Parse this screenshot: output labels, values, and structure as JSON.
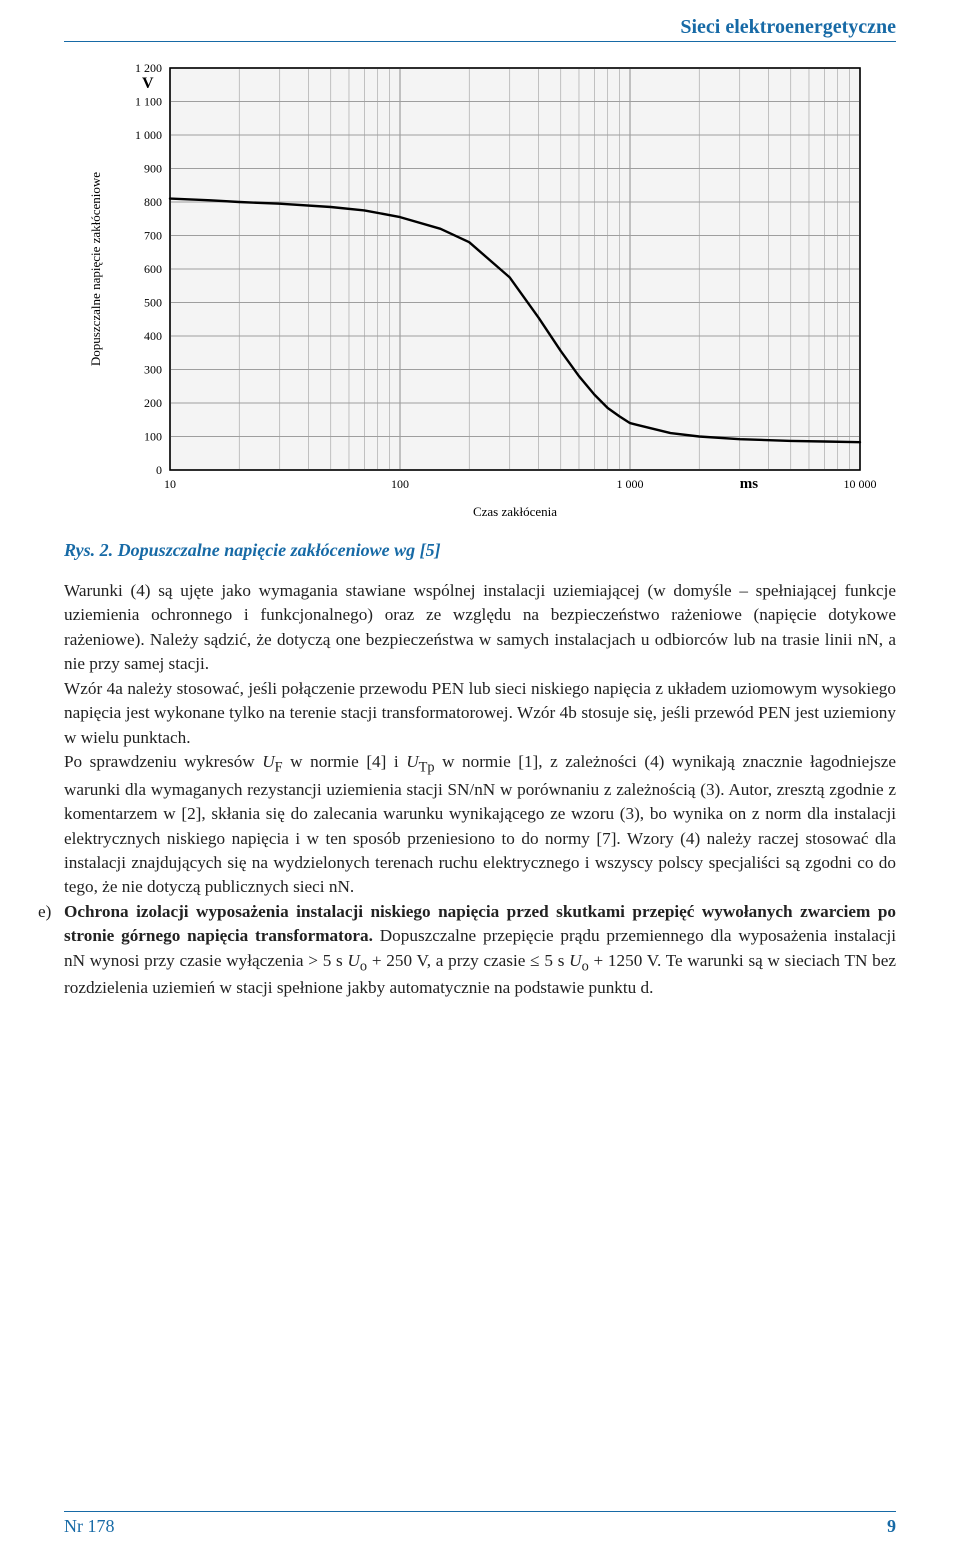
{
  "header": {
    "section_title": "Sieci elektroenergetyczne"
  },
  "figure": {
    "caption": "Rys. 2. Dopuszczalne napięcie zakłóceniowe wg [5]",
    "chart": {
      "type": "line",
      "background_color": "#ffffff",
      "plot_background_color": "#f4f4f4",
      "grid_color": "#9e9e9e",
      "axis_color": "#000000",
      "line_color": "#000000",
      "line_width": 2.4,
      "ylabel": "Dopuszczalne napięcie zakłóceniowe",
      "xlabel": "Czas zakłócenia",
      "yaxis_unit": "V",
      "xaxis_unit": "ms",
      "label_fontsize": 13,
      "tick_fontsize": 12,
      "ylim": [
        0,
        1200
      ],
      "ytick_step": 100,
      "yticks": [
        0,
        100,
        200,
        300,
        400,
        500,
        600,
        700,
        800,
        900,
        1000,
        1100,
        1200
      ],
      "xscale": "log",
      "xlim": [
        10,
        10000
      ],
      "xticks_major": [
        10,
        100,
        1000,
        10000
      ],
      "xtick_labels": [
        "10",
        "100",
        "1 000",
        "10 000"
      ],
      "xticks_minor": [
        20,
        30,
        40,
        50,
        60,
        70,
        80,
        90,
        200,
        300,
        400,
        500,
        600,
        700,
        800,
        900,
        2000,
        3000,
        4000,
        5000,
        6000,
        7000,
        8000,
        9000
      ],
      "series": [
        {
          "x_ms": 10,
          "y_v": 810
        },
        {
          "x_ms": 15,
          "y_v": 805
        },
        {
          "x_ms": 20,
          "y_v": 800
        },
        {
          "x_ms": 30,
          "y_v": 795
        },
        {
          "x_ms": 50,
          "y_v": 785
        },
        {
          "x_ms": 70,
          "y_v": 775
        },
        {
          "x_ms": 100,
          "y_v": 755
        },
        {
          "x_ms": 150,
          "y_v": 720
        },
        {
          "x_ms": 200,
          "y_v": 680
        },
        {
          "x_ms": 300,
          "y_v": 575
        },
        {
          "x_ms": 400,
          "y_v": 455
        },
        {
          "x_ms": 500,
          "y_v": 355
        },
        {
          "x_ms": 600,
          "y_v": 280
        },
        {
          "x_ms": 700,
          "y_v": 225
        },
        {
          "x_ms": 800,
          "y_v": 185
        },
        {
          "x_ms": 900,
          "y_v": 160
        },
        {
          "x_ms": 1000,
          "y_v": 140
        },
        {
          "x_ms": 1500,
          "y_v": 110
        },
        {
          "x_ms": 2000,
          "y_v": 100
        },
        {
          "x_ms": 3000,
          "y_v": 92
        },
        {
          "x_ms": 5000,
          "y_v": 87
        },
        {
          "x_ms": 7000,
          "y_v": 85
        },
        {
          "x_ms": 10000,
          "y_v": 83
        }
      ]
    }
  },
  "body": {
    "para1": "Warunki (4) są ujęte jako wymagania stawiane wspólnej instalacji uziemiającej (w domyśle – spełniającej funkcje uziemienia ochronnego i funkcjonalnego) oraz ze względu na bezpieczeństwo rażeniowe (napięcie dotykowe rażeniowe). Należy sądzić, że dotyczą one bezpieczeństwa w samych instalacjach u odbiorców lub na trasie linii nN, a nie przy samej stacji.",
    "para2": "Wzór 4a należy stosować, jeśli połączenie przewodu PEN lub sieci niskiego napięcia z układem uziomowym wysokiego napięcia jest wykonane tylko na terenie stacji transformatorowej. Wzór 4b stosuje się, jeśli przewód PEN jest uziemiony w wielu punktach.",
    "para3_a": "Po sprawdzeniu wykresów ",
    "para3_sym1": "U",
    "para3_sub1": "F",
    "para3_b": " w normie [4] i ",
    "para3_sym2": "U",
    "para3_sub2": "Tp",
    "para3_c": " w normie [1], z zależności (4) wynikają znacznie łagodniejsze warunki dla wymaganych rezystancji uziemienia stacji SN/nN w porównaniu z zależnością (3). Autor, zresztą zgodnie z komentarzem w [2], skłania się do zalecania warunku wynikającego ze wzoru (3), bo wynika on z norm dla instalacji elektrycznych niskiego napięcia i w ten sposób przeniesiono to do normy [7]. Wzory (4) należy raczej stosować dla instalacji znajdujących się na wydzielonych terenach ruchu elektrycznego i wszyscy polscy specjaliści są zgodni co do tego, że nie dotyczą publicznych sieci nN.",
    "item_e_marker": "e)",
    "item_e_bold": "Ochrona izolacji wyposażenia instalacji niskiego napięcia przed skutkami przepięć wywołanych zwarciem po stronie górnego napięcia transformatora.",
    "item_e_rest_a": " Dopuszczalne przepięcie prądu przemiennego dla wyposażenia instalacji nN wynosi przy czasie wyłączenia > 5 s ",
    "item_e_sym1": "U",
    "item_e_sub1": "o",
    "item_e_rest_b": " + 250 V, a przy czasie ≤ 5 s ",
    "item_e_sym2": "U",
    "item_e_sub2": "o",
    "item_e_rest_c": " + 1250 V. Te warunki są w sieciach TN bez rozdzielenia uziemień w stacji spełnione jakby automatycznie na podstawie punktu d."
  },
  "footer": {
    "issue": "Nr 178",
    "page_number": "9"
  }
}
